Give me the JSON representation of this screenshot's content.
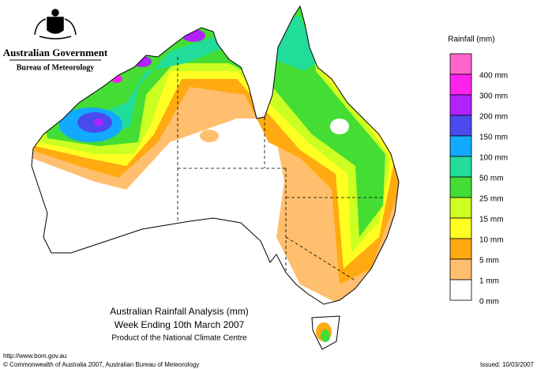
{
  "header": {
    "government": "Australian Government",
    "bureau": "Bureau of Meteorology"
  },
  "legend": {
    "title": "Rainfall (mm)",
    "colors": [
      "#ff66cc",
      "#ff22ee",
      "#b022ff",
      "#4a4aee",
      "#11aaff",
      "#22dd99",
      "#44dd33",
      "#ccff22",
      "#ffff22",
      "#ffaa11",
      "#ffbf6e",
      "#ffffff"
    ],
    "labels": [
      "400 mm",
      "300 mm",
      "200 mm",
      "150 mm",
      "100 mm",
      "50 mm",
      "25 mm",
      "15 mm",
      "10 mm",
      "5 mm",
      "1 mm",
      "0 mm"
    ]
  },
  "map_title": {
    "line1": "Australian Rainfall Analysis (mm)",
    "line2": "Week Ending 10th March 2007",
    "line3": "Product of the National Climate Centre"
  },
  "footer": {
    "url": "http://www.bom.gov.au",
    "copyright": "© Commonwealth of Australia 2007, Australian Bureau of Meteorology",
    "issued": "Issued: 10/03/2007"
  }
}
